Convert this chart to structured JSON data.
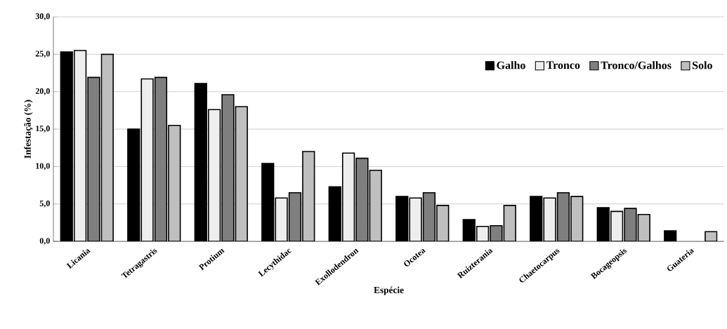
{
  "chart_data": {
    "type": "bar",
    "xlabel": "Espécie",
    "ylabel": "Infestação (%)",
    "categories": [
      "Licania",
      "Tetragastris",
      "Protium",
      "Lecythidac",
      "Exollodendron",
      "Ocotea",
      "Ruizterania",
      "Chaetocarpus",
      "Bocageopsis",
      "Guateria"
    ],
    "series": [
      {
        "name": "Galho",
        "color": "#000000",
        "values": [
          25.3,
          15.0,
          21.1,
          10.4,
          7.3,
          6.0,
          2.9,
          6.0,
          4.5,
          1.4
        ]
      },
      {
        "name": "Tronco",
        "color": "#eeeeee",
        "values": [
          25.5,
          21.7,
          17.6,
          5.8,
          11.8,
          5.8,
          2.0,
          5.8,
          4.0,
          null
        ]
      },
      {
        "name": "Tronco/Galhos",
        "color": "#7f7f7f",
        "values": [
          21.9,
          21.9,
          19.6,
          6.5,
          11.1,
          6.5,
          2.1,
          6.5,
          4.4,
          null
        ]
      },
      {
        "name": "Solo",
        "color": "#bfbfbf",
        "values": [
          25.0,
          15.5,
          18.0,
          12.0,
          9.5,
          4.8,
          4.8,
          6.0,
          3.6,
          1.3
        ]
      }
    ],
    "ylim": [
      0,
      30
    ],
    "yticks": [
      {
        "value": 0,
        "label": "0,0"
      },
      {
        "value": 5,
        "label": "5,0"
      },
      {
        "value": 10,
        "label": "10,0"
      },
      {
        "value": 15,
        "label": "15,0"
      },
      {
        "value": 20,
        "label": "20,0"
      },
      {
        "value": 25,
        "label": "25,0"
      },
      {
        "value": 30,
        "label": "30,0"
      }
    ],
    "grid": "y",
    "legend": "top right"
  }
}
